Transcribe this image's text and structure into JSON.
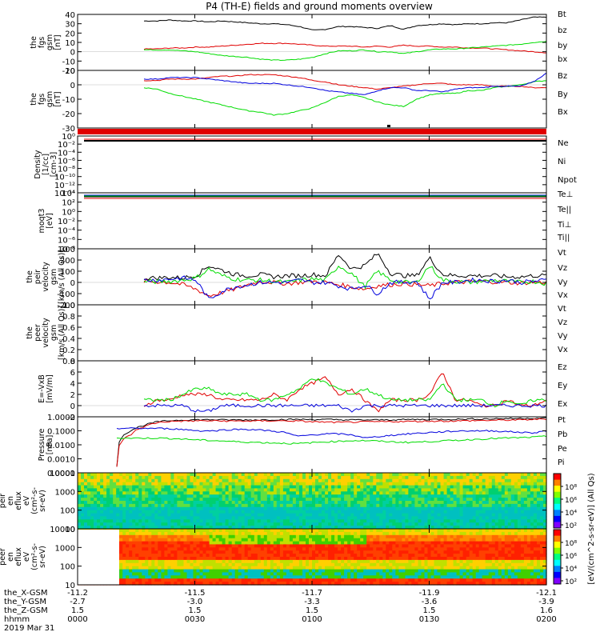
{
  "title": "P4 (TH-E) fields and ground moments overview",
  "colors": {
    "black": "#000000",
    "red": "#e00000",
    "green": "#00dd00",
    "blue": "#0000dd",
    "bg": "#ffffff"
  },
  "chart_data": [
    {
      "type": "line",
      "ylabel": [
        "the",
        "fgs",
        "gsm",
        "[nT]"
      ],
      "ylim": [
        -20,
        40
      ],
      "yticks": [
        "40",
        "30",
        "20",
        "10",
        "0",
        "-10",
        "-20"
      ],
      "series": [
        {
          "name": "Bt",
          "color": "black",
          "values": [
            33,
            33,
            34,
            33,
            33,
            32,
            33,
            32,
            31,
            30,
            30,
            29,
            27,
            23,
            24,
            27,
            27,
            26,
            25,
            28,
            24,
            28,
            29,
            30,
            29,
            30,
            30,
            31,
            31,
            34,
            37,
            37
          ]
        },
        {
          "name": "bz",
          "color": "red",
          "values": [
            3,
            3,
            4,
            4,
            5,
            5,
            6,
            7,
            8,
            9,
            9,
            9,
            8,
            7,
            6,
            6,
            6,
            5,
            6,
            5,
            7,
            6,
            6,
            5,
            5,
            4,
            4,
            3,
            2,
            1,
            0,
            -1
          ]
        },
        {
          "name": "by",
          "color": "green",
          "values": [
            2,
            2,
            2,
            1,
            0,
            -2,
            -4,
            -5,
            -6,
            -8,
            -9,
            -9,
            -8,
            -6,
            -2,
            1,
            1,
            2,
            0,
            0,
            -2,
            0,
            2,
            3,
            3,
            4,
            5,
            6,
            7,
            8,
            10,
            11
          ]
        },
        {
          "name": "bx",
          "color": "blue",
          "values": []
        }
      ]
    },
    {
      "type": "line",
      "ylabel": [
        "the",
        "fgs",
        "gsm",
        "[nT]"
      ],
      "ylim": [
        -30,
        10
      ],
      "yticks": [
        "10",
        "0",
        "-10",
        "-20",
        "-30"
      ],
      "series": [
        {
          "name": "Bz",
          "color": "red",
          "values": [
            3,
            3,
            4,
            4,
            4,
            5,
            6,
            6,
            7,
            7,
            7,
            6,
            5,
            3,
            2,
            0,
            -1,
            -2,
            -3,
            -2,
            -1,
            0,
            1,
            1,
            0,
            0,
            0,
            -1,
            -1,
            -1,
            -2,
            -2
          ]
        },
        {
          "name": "By",
          "color": "green",
          "values": [
            -2,
            -3,
            -6,
            -8,
            -10,
            -12,
            -14,
            -16,
            -18,
            -19,
            -21,
            -20,
            -18,
            -16,
            -12,
            -8,
            -7,
            -9,
            -12,
            -14,
            -15,
            -10,
            -7,
            -6,
            -6,
            -4,
            -4,
            -2,
            -1,
            0,
            2,
            3
          ]
        },
        {
          "name": "Bx",
          "color": "blue",
          "values": [
            4,
            4,
            5,
            5,
            5,
            4,
            3,
            2,
            1,
            1,
            1,
            0,
            -1,
            -2,
            -4,
            -5,
            -6,
            -7,
            -4,
            -2,
            -2,
            -4,
            -4,
            -5,
            -3,
            -2,
            -2,
            -1,
            -1,
            -1,
            2,
            8
          ]
        }
      ]
    },
    {
      "type": "line",
      "ylabel": [
        "Density",
        "[1/cc]",
        "[cm-3]"
      ],
      "log": true,
      "yticks": [
        "10⁰",
        "10⁻²",
        "10⁻⁴",
        "10⁻⁶",
        "10⁻⁸",
        "10⁻¹⁰",
        "10⁻¹²",
        "10⁻¹⁴"
      ],
      "series": [
        {
          "name": "Ne",
          "color": "red",
          "values": []
        },
        {
          "name": "Ni",
          "color": "black",
          "values": []
        },
        {
          "name": "Npot",
          "color": "blue",
          "values": []
        }
      ]
    },
    {
      "type": "line",
      "ylabel": [
        "moqt3",
        "[eV]"
      ],
      "log": true,
      "yticks": [
        "10⁴",
        "10²",
        "10⁰",
        "10⁻²",
        "10⁻⁴",
        "10⁻⁶",
        "10⁻⁸"
      ],
      "series": [
        {
          "name": "Te⊥",
          "color": "red",
          "values": []
        },
        {
          "name": "Te||",
          "color": "black",
          "values": []
        },
        {
          "name": "Ti⊥",
          "color": "blue",
          "values": []
        },
        {
          "name": "Ti||",
          "color": "green",
          "values": []
        }
      ]
    },
    {
      "type": "line",
      "ylabel": [
        "the",
        "peir",
        "velocity",
        "gsm",
        "[km/s (All Qs)]"
      ],
      "ylim": [
        -200,
        300
      ],
      "yticks": [
        "300",
        "200",
        "100",
        "0",
        "-100",
        "-200"
      ],
      "series": [
        {
          "name": "Vt",
          "color": "black",
          "values": [
            40,
            40,
            45,
            40,
            60,
            150,
            110,
            70,
            60,
            70,
            50,
            60,
            60,
            70,
            60,
            250,
            120,
            150,
            260,
            80,
            60,
            60,
            220,
            70,
            60,
            60,
            60,
            60,
            50,
            50,
            60,
            60
          ]
        },
        {
          "name": "Vz",
          "color": "red",
          "values": [
            10,
            5,
            0,
            -20,
            -60,
            -120,
            -90,
            -60,
            -20,
            10,
            0,
            -10,
            0,
            10,
            0,
            -20,
            -40,
            -60,
            -30,
            -20,
            -10,
            -20,
            -30,
            -10,
            0,
            5,
            10,
            5,
            0,
            -5,
            0,
            0
          ]
        },
        {
          "name": "Vy",
          "color": "green",
          "values": [
            10,
            5,
            10,
            20,
            40,
            120,
            60,
            30,
            20,
            20,
            10,
            0,
            20,
            30,
            20,
            150,
            80,
            -40,
            100,
            20,
            0,
            0,
            150,
            20,
            10,
            0,
            10,
            20,
            10,
            0,
            10,
            -10
          ]
        },
        {
          "name": "Vx",
          "color": "blue",
          "values": [
            20,
            20,
            30,
            40,
            20,
            -150,
            -80,
            -40,
            -20,
            0,
            0,
            0,
            20,
            0,
            0,
            -30,
            -60,
            -20,
            -100,
            0,
            0,
            10,
            -150,
            0,
            0,
            20,
            20,
            10,
            20,
            0,
            10,
            20
          ]
        }
      ]
    },
    {
      "type": "line",
      "ylabel": [
        "the",
        "peer",
        "velocity",
        "gsm",
        "[km/s (All Qs)]"
      ],
      "ylim": [
        0,
        1
      ],
      "yticks": [
        "1.0",
        "0.8",
        "0.6",
        "0.4",
        "0.2",
        "0.0"
      ],
      "series": [
        {
          "name": "Vt",
          "color": "black",
          "values": []
        },
        {
          "name": "Vz",
          "color": "red",
          "values": []
        },
        {
          "name": "Vy",
          "color": "green",
          "values": []
        },
        {
          "name": "Vx",
          "color": "blue",
          "values": []
        }
      ]
    },
    {
      "type": "line",
      "ylabel": [
        "E=-VxB",
        "[mV/m]"
      ],
      "ylim": [
        -2,
        8
      ],
      "yticks": [
        "8",
        "6",
        "4",
        "2",
        "0",
        "-2"
      ],
      "series": [
        {
          "name": "Ez",
          "color": "red",
          "values": [
            0,
            1,
            1,
            2,
            2,
            2,
            1,
            1,
            1,
            1,
            2,
            1,
            3,
            4,
            5,
            2,
            3,
            1,
            -1,
            1,
            1,
            1,
            2,
            6,
            1,
            1,
            0,
            0,
            1,
            0,
            0,
            1
          ]
        },
        {
          "name": "Ey",
          "color": "green",
          "values": [
            1,
            1,
            1,
            2,
            3,
            3,
            2,
            2,
            2,
            1,
            1,
            2,
            3,
            5,
            4,
            3,
            2,
            3,
            2,
            1,
            1,
            1,
            1,
            4,
            1,
            1,
            1,
            0,
            1,
            0,
            1,
            1
          ]
        },
        {
          "name": "Ex",
          "color": "blue",
          "values": [
            0,
            0,
            0,
            0,
            -1,
            -1,
            0,
            0,
            0,
            0,
            0,
            0,
            0,
            0,
            0,
            0,
            -1,
            0,
            0,
            0,
            0,
            0,
            0,
            0,
            0,
            0,
            0,
            0,
            0,
            0,
            0,
            0
          ]
        }
      ]
    },
    {
      "type": "line",
      "ylabel": [
        "Pressure",
        "[nPa]"
      ],
      "log": true,
      "yticks": [
        "1.0000",
        "0.1000",
        "0.0100",
        "0.0010",
        "0.0001"
      ],
      "series": [
        {
          "name": "Pt",
          "color": "black",
          "values": [
            0.00025,
            0.1,
            0.25,
            0.45,
            0.55,
            0.6,
            0.62,
            0.62,
            0.6,
            0.6,
            0.6,
            0.62,
            0.64,
            0.65,
            0.65,
            0.64,
            0.62,
            0.6,
            0.6,
            0.6,
            0.62,
            0.64,
            0.65,
            0.65,
            0.66,
            0.68,
            0.7,
            0.72,
            0.74,
            0.76,
            0.78,
            0.8
          ]
        },
        {
          "name": "Pb",
          "color": "red",
          "values": [
            0.00025,
            0.05,
            0.2,
            0.4,
            0.48,
            0.5,
            0.52,
            0.52,
            0.5,
            0.5,
            0.5,
            0.52,
            0.52,
            0.5,
            0.45,
            0.42,
            0.4,
            0.42,
            0.44,
            0.45,
            0.46,
            0.47,
            0.48,
            0.5,
            0.5,
            0.52,
            0.54,
            0.56,
            0.58,
            0.6,
            0.65,
            0.7
          ]
        },
        {
          "name": "Pe",
          "color": "green",
          "values": [
            0.03,
            0.03,
            0.03,
            0.03,
            0.028,
            0.025,
            0.022,
            0.02,
            0.018,
            0.016,
            0.015,
            0.014,
            0.013,
            0.012,
            0.014,
            0.016,
            0.018,
            0.02,
            0.02,
            0.018,
            0.016,
            0.015,
            0.016,
            0.018,
            0.02,
            0.022,
            0.025,
            0.028,
            0.03,
            0.032,
            0.035,
            0.04
          ]
        },
        {
          "name": "Pi",
          "color": "blue",
          "values": [
            0.15,
            0.15,
            0.15,
            0.15,
            0.14,
            0.12,
            0.1,
            0.1,
            0.12,
            0.13,
            0.12,
            0.1,
            0.08,
            0.04,
            0.05,
            0.06,
            0.06,
            0.05,
            0.03,
            0.04,
            0.05,
            0.06,
            0.07,
            0.08,
            0.09,
            0.1,
            0.1,
            0.1,
            0.09,
            0.08,
            0.07,
            0.1
          ]
        }
      ]
    },
    {
      "type": "heatmap",
      "ylabel": [
        "the",
        "peir",
        "en",
        "eflux",
        "eV",
        "(cm²-s-",
        "sr-eV)"
      ],
      "log": true,
      "yticks": [
        "10000",
        "1000",
        "100",
        "10"
      ],
      "colorbar_label": "[eV/(cm^2-s-sr-eV)] (All Qs)",
      "colorbar_ticks": [
        "10⁸",
        "10⁶",
        "10⁴",
        "10²"
      ]
    },
    {
      "type": "heatmap",
      "ylabel": [
        "the",
        "peer",
        "en",
        "eflux",
        "eV",
        "(cm²-s-",
        "sr-eV)"
      ],
      "log": true,
      "yticks": [
        "10000",
        "1000",
        "100",
        "10"
      ],
      "colorbar_label": "[eV/(cm^2-s-sr-eV)] (All Qs)",
      "colorbar_ticks": [
        "10⁸",
        "10⁶",
        "10⁴",
        "10²"
      ]
    }
  ],
  "xaxis": {
    "row_labels": [
      "the_X-GSM",
      "the_Y-GSM",
      "the_Z-GSM",
      "hhmm",
      "2019 Mar 31"
    ],
    "ticks": [
      {
        "x": "-11.2",
        "y": "-2.7",
        "z": "1.5",
        "t": "0000"
      },
      {
        "x": "-11.5",
        "y": "-3.0",
        "z": "1.5",
        "t": "0030"
      },
      {
        "x": "-11.7",
        "y": "-3.3",
        "z": "1.5",
        "t": "0100"
      },
      {
        "x": "-11.9",
        "y": "-3.6",
        "z": "1.5",
        "t": "0130"
      },
      {
        "x": "-12.1",
        "y": "-3.9",
        "z": "1.6",
        "t": "0200"
      }
    ]
  }
}
